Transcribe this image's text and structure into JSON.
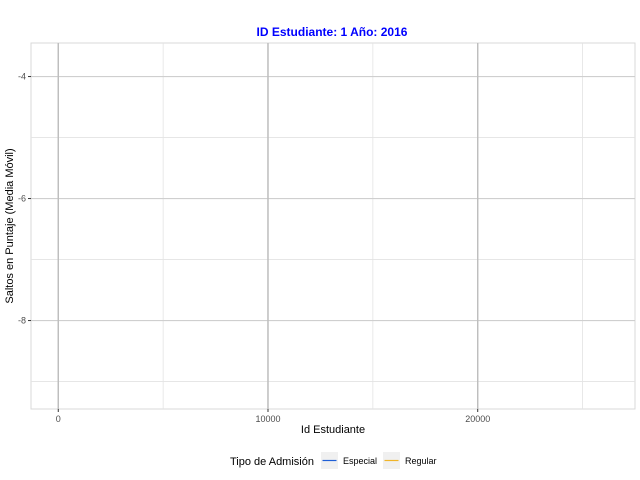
{
  "chart_data": {
    "type": "line",
    "title": "ID Estudiante: 1  Año: 2016",
    "xlabel": "Id Estudiante",
    "ylabel": "Saltos en Puntaje (Media Móvil)",
    "xlim": [
      -1300,
      27500
    ],
    "ylim": [
      -9.45,
      -3.45
    ],
    "x_ticks": [
      0,
      10000,
      20000
    ],
    "x_tick_labels": [
      "0",
      "10000",
      "20000"
    ],
    "x_minor_ticks": [
      5000,
      15000,
      25000
    ],
    "y_ticks": [
      -4,
      -6,
      -8
    ],
    "y_tick_labels": [
      "-4",
      "-6",
      "-8"
    ],
    "y_minor_ticks": [
      -5,
      -7,
      -9
    ],
    "grid": true,
    "legend_position": "bottom",
    "legend": {
      "title": "Tipo de Admisión",
      "entries": [
        {
          "label": "Especial",
          "color": "#1f5fd6"
        },
        {
          "label": "Regular",
          "color": "#f0b429"
        }
      ]
    },
    "series": [
      {
        "name": "Especial",
        "color": "#1f5fd6",
        "points": []
      },
      {
        "name": "Regular",
        "color": "#f0b429",
        "points": []
      }
    ],
    "extra_vertical_lines": [
      0,
      10000,
      20000
    ],
    "title_color": "#0000ff"
  }
}
